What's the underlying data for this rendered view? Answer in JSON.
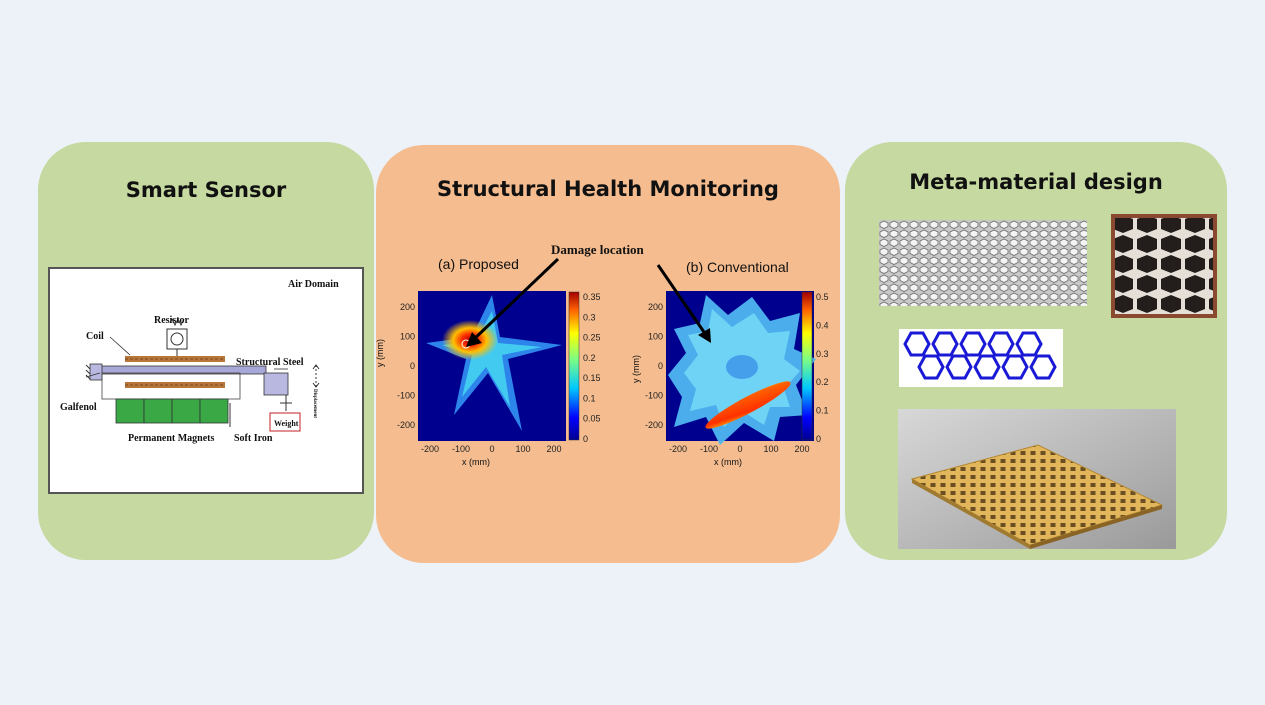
{
  "panels": {
    "smart_sensor": {
      "title": "Smart Sensor",
      "labels": {
        "air_domain": "Air Domain",
        "resistor": "Resistor",
        "coil": "Coil",
        "structural_steel": "Structural Steel",
        "galfenol": "Galfenol",
        "displacement": "Displacement",
        "weight": "Weight",
        "permanent_magnets": "Permanent Magnets",
        "soft_iron": "Soft Iron"
      }
    },
    "shm": {
      "title": "Structural Health Monitoring",
      "damage_label": "Damage  location",
      "map_a": {
        "caption": "(a) Proposed",
        "xlabel": "x (mm)",
        "ylabel": "y (mm)",
        "xticks": [
          "-200",
          "-100",
          "0",
          "100",
          "200"
        ],
        "yticks": [
          "200",
          "100",
          "0",
          "-100",
          "-200"
        ],
        "colorbar_ticks": [
          "0.35",
          "0.3",
          "0.25",
          "0.2",
          "0.15",
          "0.1",
          "0.05",
          "0"
        ]
      },
      "map_b": {
        "caption": "(b) Conventional",
        "xlabel": "x (mm)",
        "ylabel": "y (mm)",
        "xticks": [
          "-200",
          "-100",
          "0",
          "100",
          "200"
        ],
        "yticks": [
          "200",
          "100",
          "0",
          "-100",
          "-200"
        ],
        "colorbar_ticks": [
          "0.5",
          "0.4",
          "0.3",
          "0.2",
          "0.1",
          "0"
        ]
      }
    },
    "meta": {
      "title": "Meta-material design"
    }
  },
  "colors": {
    "green_panel": "#c5d9a0",
    "orange_panel": "#f5bd8f",
    "background": "#edf2f8",
    "hex_blue": "#1a1ad6",
    "lattice_gold": "#d6aa4a"
  }
}
